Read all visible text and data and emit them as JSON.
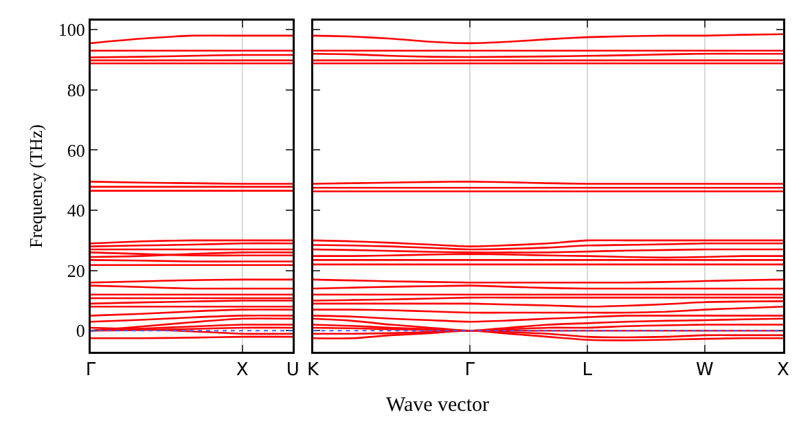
{
  "chart_data": [
    {
      "type": "line",
      "ylabel": "Frequency (THz)",
      "categories": [
        "Γ",
        null,
        null,
        "X",
        "U"
      ],
      "ylim": [
        -7,
        103
      ],
      "yticks": [
        0,
        20,
        40,
        60,
        80,
        100
      ],
      "marker": "none",
      "line_style": "solid",
      "ref_lines": [
        {
          "axis": "y",
          "value": 0,
          "color": "#4060ff",
          "line_style": "dotted"
        },
        {
          "axis": "x",
          "value": "X",
          "color": "#d8d8d8",
          "line_style": "solid"
        }
      ],
      "series": [
        {
          "color": "#ff0000",
          "values": [
            95.5,
            97,
            98,
            98,
            98
          ]
        },
        {
          "color": "#ff0000",
          "values": [
            93,
            93,
            93,
            93,
            93
          ]
        },
        {
          "color": "#ff0000",
          "values": [
            90.8,
            91,
            91.3,
            91.6,
            91.6
          ]
        },
        {
          "color": "#ff0000",
          "values": [
            89.8,
            89.8,
            89.8,
            89.8,
            89.8
          ]
        },
        {
          "color": "#ff0000",
          "values": [
            88.8,
            88.8,
            88.8,
            88.8,
            88.8
          ]
        },
        {
          "color": "#ff0000",
          "values": [
            49.5,
            49.2,
            49,
            48.8,
            48.8
          ]
        },
        {
          "color": "#ff0000",
          "values": [
            47.8,
            47.8,
            47.8,
            47.8,
            47.8
          ]
        },
        {
          "color": "#ff0000",
          "values": [
            46.5,
            46.5,
            46.5,
            46.5,
            46.5
          ]
        },
        {
          "color": "#ff0000",
          "values": [
            29,
            29.7,
            30,
            30,
            30
          ]
        },
        {
          "color": "#ff0000",
          "values": [
            28,
            28.3,
            28.6,
            29,
            29
          ]
        },
        {
          "color": "#ff0000",
          "values": [
            27,
            27,
            27,
            27,
            27
          ]
        },
        {
          "color": "#ff0000",
          "values": [
            26,
            25.5,
            25,
            25,
            25
          ]
        },
        {
          "color": "#ff0000",
          "values": [
            24.5,
            24.8,
            25.5,
            26,
            26
          ]
        },
        {
          "color": "#ff0000",
          "values": [
            23.5,
            23.3,
            23,
            23,
            23
          ]
        },
        {
          "color": "#ff0000",
          "values": [
            21.8,
            21.8,
            21.8,
            21.8,
            21.8
          ]
        },
        {
          "color": "#ff0000",
          "values": [
            16,
            16.4,
            16.8,
            17,
            17
          ]
        },
        {
          "color": "#ff0000",
          "values": [
            15,
            14.5,
            14,
            14,
            14
          ]
        },
        {
          "color": "#ff0000",
          "values": [
            12,
            12,
            12,
            12,
            12
          ]
        },
        {
          "color": "#ff0000",
          "values": [
            10.8,
            10.8,
            10.8,
            10.8,
            10.8
          ]
        },
        {
          "color": "#ff0000",
          "values": [
            9,
            9.4,
            9.7,
            10,
            10
          ]
        },
        {
          "color": "#ff0000",
          "values": [
            8,
            8,
            8,
            8,
            8
          ]
        },
        {
          "color": "#ff0000",
          "values": [
            5,
            5.6,
            6.4,
            7,
            7
          ]
        },
        {
          "color": "#ff0000",
          "values": [
            3,
            3.6,
            4.4,
            5,
            5
          ]
        },
        {
          "color": "#ff0000",
          "values": [
            0,
            1.4,
            2.8,
            4,
            4
          ]
        },
        {
          "color": "#ff0000",
          "values": [
            0,
            0.7,
            1.4,
            2,
            2
          ]
        },
        {
          "color": "#ff0000",
          "values": [
            0,
            0.2,
            0.6,
            1,
            1
          ]
        },
        {
          "color": "#ff0000",
          "values": [
            1,
            0.5,
            -0.2,
            -1,
            -1
          ]
        },
        {
          "color": "#ff0000",
          "values": [
            -2.5,
            -2.5,
            -2.3,
            -2,
            -2
          ]
        }
      ]
    },
    {
      "type": "line",
      "xlabel": "Wave vector",
      "categories": [
        "K",
        null,
        null,
        null,
        "Γ",
        null,
        null,
        "L",
        null,
        null,
        "W",
        null,
        "X"
      ],
      "ylim": [
        -7,
        103
      ],
      "yticks": [
        0,
        20,
        40,
        60,
        80,
        100
      ],
      "tick_labels": "x",
      "grid": "x",
      "marker": "none",
      "line_style": "solid",
      "ref_lines": [
        {
          "axis": "y",
          "value": 0,
          "color": "#4060ff",
          "line_style": "dotted"
        }
      ],
      "series": [
        {
          "color": "#ff0000",
          "values": [
            98,
            97.7,
            97,
            96,
            95.5,
            96,
            96.8,
            97.5,
            97.8,
            98,
            98,
            98.3,
            98.5
          ]
        },
        {
          "color": "#ff0000",
          "values": [
            93,
            93,
            93,
            93,
            93,
            93,
            93,
            93,
            93,
            93,
            93,
            93,
            93
          ]
        },
        {
          "color": "#ff0000",
          "values": [
            92,
            91.8,
            91.3,
            91,
            90.9,
            91,
            91.1,
            91.3,
            91.5,
            91.8,
            92,
            92,
            92
          ]
        },
        {
          "color": "#ff0000",
          "values": [
            89.8,
            89.8,
            89.8,
            89.8,
            89.8,
            89.8,
            89.8,
            89.8,
            89.8,
            89.8,
            89.8,
            89.8,
            89.8
          ]
        },
        {
          "color": "#ff0000",
          "values": [
            88.8,
            88.8,
            88.8,
            88.8,
            88.8,
            88.8,
            88.8,
            88.8,
            88.8,
            88.8,
            88.8,
            88.8,
            88.8
          ]
        },
        {
          "color": "#ff0000",
          "values": [
            48.8,
            49,
            49.2,
            49.4,
            49.5,
            49.3,
            49,
            48.8,
            48.8,
            48.8,
            48.8,
            48.8,
            48.8
          ]
        },
        {
          "color": "#ff0000",
          "values": [
            47.5,
            47.5,
            47.5,
            47.5,
            47.5,
            47.5,
            47.5,
            47.5,
            47.5,
            47.5,
            47.5,
            47.5,
            47.5
          ]
        },
        {
          "color": "#ff0000",
          "values": [
            46.3,
            46.3,
            46.3,
            46.3,
            46.3,
            46.3,
            46.3,
            46.3,
            46.3,
            46.3,
            46.3,
            46.3,
            46.3
          ]
        },
        {
          "color": "#ff0000",
          "values": [
            30,
            29.7,
            29.2,
            28.6,
            28,
            28.4,
            29,
            30,
            30,
            30,
            30,
            30,
            30
          ]
        },
        {
          "color": "#ff0000",
          "values": [
            28.5,
            28.3,
            28,
            27.5,
            27,
            27.2,
            27.6,
            28.3,
            28.5,
            28.7,
            29,
            29,
            29
          ]
        },
        {
          "color": "#ff0000",
          "values": [
            27,
            26.8,
            26.5,
            26.2,
            26,
            26,
            26,
            26.3,
            26.6,
            26.8,
            27,
            27,
            27
          ]
        },
        {
          "color": "#ff0000",
          "values": [
            24.8,
            24.8,
            25,
            25.3,
            25.5,
            25.3,
            25,
            24.8,
            24.5,
            24.3,
            24.5,
            24.8,
            24.8
          ]
        },
        {
          "color": "#ff0000",
          "values": [
            23.5,
            23.5,
            23.5,
            23.5,
            23.5,
            23.5,
            23.5,
            23.5,
            23.5,
            23.5,
            23.5,
            23.5,
            23.5
          ]
        },
        {
          "color": "#ff0000",
          "values": [
            22,
            22,
            22,
            22,
            22,
            22,
            22,
            22,
            22,
            22,
            22,
            22,
            22
          ]
        },
        {
          "color": "#ff0000",
          "values": [
            17,
            16.7,
            16.4,
            16.2,
            16,
            16,
            16,
            16,
            16,
            16.2,
            16.5,
            16.8,
            17
          ]
        },
        {
          "color": "#ff0000",
          "values": [
            14,
            14.3,
            14.6,
            14.8,
            15,
            14.6,
            14.2,
            14,
            14,
            14,
            14,
            14,
            14
          ]
        },
        {
          "color": "#ff0000",
          "values": [
            12,
            12,
            12,
            12,
            12,
            12,
            12,
            12,
            12,
            12,
            12,
            12,
            12
          ]
        },
        {
          "color": "#ff0000",
          "values": [
            10,
            10.2,
            10.4,
            10.7,
            11,
            11,
            11,
            11,
            11,
            11,
            11,
            11,
            11
          ]
        },
        {
          "color": "#ff0000",
          "values": [
            9,
            9,
            9,
            9,
            9,
            8.7,
            8.4,
            8,
            8.3,
            8.8,
            9.5,
            9.7,
            9.8
          ]
        },
        {
          "color": "#ff0000",
          "values": [
            7,
            7,
            6.8,
            6.4,
            6,
            6,
            6,
            6,
            6,
            6.3,
            7,
            7.5,
            8
          ]
        },
        {
          "color": "#ff0000",
          "values": [
            5,
            4.7,
            4,
            3.5,
            3,
            3.4,
            4,
            4.5,
            5,
            5,
            5,
            5,
            5
          ]
        },
        {
          "color": "#ff0000",
          "values": [
            4,
            3.3,
            2,
            1,
            0,
            1,
            2,
            2.5,
            3,
            3.3,
            3.5,
            3.8,
            4
          ]
        },
        {
          "color": "#ff0000",
          "values": [
            2,
            1.6,
            1,
            0.5,
            0,
            0.5,
            1,
            1,
            1.5,
            1.8,
            2,
            2,
            2
          ]
        },
        {
          "color": "#ff0000",
          "values": [
            1,
            0.8,
            0.5,
            0.2,
            0,
            0,
            0,
            0,
            0,
            0,
            0,
            0,
            0
          ]
        },
        {
          "color": "#ff0000",
          "values": [
            -1,
            -1,
            -0.8,
            -0.4,
            0,
            -0.5,
            -1,
            -2,
            -2.2,
            -2,
            -1.5,
            -1.5,
            -1.5
          ]
        },
        {
          "color": "#ff0000",
          "values": [
            -2.5,
            -2.5,
            -1.5,
            -0.8,
            0,
            -1,
            -2,
            -3,
            -3.2,
            -3,
            -2.7,
            -2.5,
            -2.5
          ]
        }
      ]
    }
  ]
}
